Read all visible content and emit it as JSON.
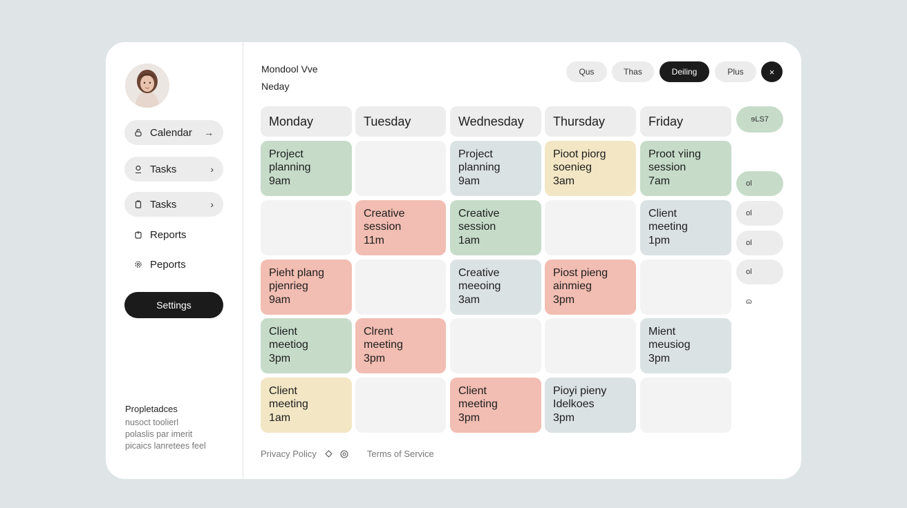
{
  "sidebar": {
    "nav": [
      {
        "label": "Calendar",
        "icon": "lock-icon",
        "chevron": "→"
      },
      {
        "label": "Tasks",
        "icon": "person-icon",
        "chevron": "›"
      },
      {
        "label": "Tasks",
        "icon": "clipboard-icon",
        "chevron": "›"
      },
      {
        "label": "Reports",
        "icon": "report-icon"
      },
      {
        "label": "Peports",
        "icon": "gear-icon"
      }
    ],
    "settings_label": "Settings",
    "footer": {
      "title": "Propletadces",
      "lines": [
        "nusoct toolierl",
        "polaslis par imerit",
        "picaics lanretees feel"
      ]
    }
  },
  "header": {
    "title": "Mondool Vve",
    "subtitle": "Neday",
    "chips": [
      "Qus",
      "Thas",
      "Deiling",
      "Plus"
    ],
    "close_label": "×"
  },
  "days": [
    "Monday",
    "Tuesday",
    "Wednesday",
    "Thursday",
    "Friday"
  ],
  "right_column": {
    "top_chip": "ɘLS7",
    "chips": [
      "ol",
      "ol",
      "ol",
      "ol"
    ],
    "glyph": "ɷ"
  },
  "rows": [
    [
      {
        "title": "Project\nplanning",
        "time": "9am",
        "color": "green"
      },
      {
        "title": "",
        "time": "",
        "color": "empty"
      },
      {
        "title": "Project\nplanning",
        "time": "9am",
        "color": "blue"
      },
      {
        "title": "Pioot piorg\nsoenieg",
        "time": "3am",
        "color": "yellow"
      },
      {
        "title": "Proot ʏiing\nsession",
        "time": "7am",
        "color": "green"
      }
    ],
    [
      {
        "title": "",
        "time": "",
        "color": "empty"
      },
      {
        "title": "Creative\nsession",
        "time": "11m",
        "color": "red"
      },
      {
        "title": "Creative\nsession",
        "time": "1am",
        "color": "green"
      },
      {
        "title": "",
        "time": "",
        "color": "empty"
      },
      {
        "title": "Client\nmeeting",
        "time": "1pm",
        "color": "blue"
      }
    ],
    [
      {
        "title": "Pieht plang\npjenrieg",
        "time": "9am",
        "color": "red"
      },
      {
        "title": "",
        "time": "",
        "color": "empty"
      },
      {
        "title": "Creative\nmeeoing",
        "time": "3am",
        "color": "blue"
      },
      {
        "title": "Piost pieng\nainmieg",
        "time": "3pm",
        "color": "red"
      },
      {
        "title": "",
        "time": "",
        "color": "empty"
      }
    ],
    [
      {
        "title": "Client\nmeetiog",
        "time": "3pm",
        "color": "green"
      },
      {
        "title": "Clrent\nmeeting",
        "time": "3pm",
        "color": "red"
      },
      {
        "title": "",
        "time": "",
        "color": "empty"
      },
      {
        "title": "",
        "time": "",
        "color": "empty"
      },
      {
        "title": "Mient\nmeusiog",
        "time": "3pm",
        "color": "blue"
      }
    ],
    [
      {
        "title": "Client\nmeeting",
        "time": "1am",
        "color": "yellow"
      },
      {
        "title": "",
        "time": "",
        "color": "empty"
      },
      {
        "title": "Client\nmeeting",
        "time": "3pm",
        "color": "red"
      },
      {
        "title": "Pioyi pieny\nIdelkoes",
        "time": "3pm",
        "color": "blue"
      },
      {
        "title": "",
        "time": "",
        "color": "empty"
      }
    ]
  ],
  "footer": {
    "privacy": "Privacy Policy",
    "terms": "Terms of Service"
  },
  "colors": {
    "green": "#c6dcc9",
    "red": "#f2bdb2",
    "blue": "#dbe2e3",
    "yellow": "#f2e6c4",
    "dark": "#1b1b1b"
  }
}
